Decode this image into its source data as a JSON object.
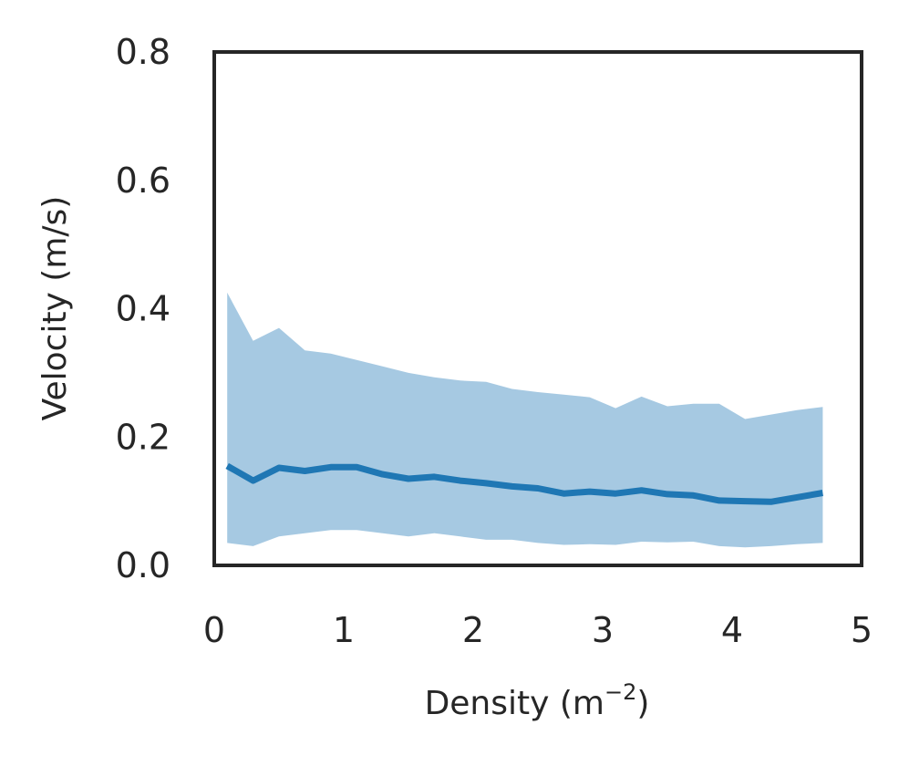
{
  "chart_data": {
    "type": "line",
    "title": "",
    "xlabel": "Density (m",
    "xlabel_exponent": "−2",
    "xlabel_close": ")",
    "ylabel": "Velocity (m/s)",
    "xlim": [
      0,
      5
    ],
    "ylim": [
      0,
      0.8
    ],
    "xticks": [
      0,
      1,
      2,
      3,
      4,
      5
    ],
    "xtick_labels": [
      "0",
      "1",
      "2",
      "3",
      "4",
      "5"
    ],
    "yticks": [
      0,
      0.2,
      0.4,
      0.6,
      0.8
    ],
    "ytick_labels": [
      "0.0",
      "0.2",
      "0.4",
      "0.6",
      "0.8"
    ],
    "grid": false,
    "x": [
      0.1,
      0.3,
      0.5,
      0.7,
      0.9,
      1.1,
      1.3,
      1.5,
      1.7,
      1.9,
      2.1,
      2.3,
      2.5,
      2.7,
      2.9,
      3.1,
      3.3,
      3.5,
      3.7,
      3.9,
      4.1,
      4.3,
      4.5,
      4.7
    ],
    "series": [
      {
        "values": [
          0.155,
          0.132,
          0.152,
          0.147,
          0.153,
          0.153,
          0.142,
          0.135,
          0.138,
          0.132,
          0.128,
          0.123,
          0.12,
          0.112,
          0.115,
          0.112,
          0.117,
          0.111,
          0.109,
          0.101,
          0.1,
          0.099,
          0.106,
          0.113
        ],
        "band_lower": [
          0.035,
          0.03,
          0.045,
          0.05,
          0.055,
          0.055,
          0.05,
          0.045,
          0.05,
          0.045,
          0.04,
          0.04,
          0.035,
          0.032,
          0.033,
          0.032,
          0.037,
          0.036,
          0.037,
          0.03,
          0.028,
          0.03,
          0.033,
          0.035
        ],
        "band_upper": [
          0.425,
          0.35,
          0.37,
          0.335,
          0.33,
          0.32,
          0.31,
          0.3,
          0.293,
          0.288,
          0.286,
          0.275,
          0.27,
          0.266,
          0.262,
          0.245,
          0.263,
          0.248,
          0.252,
          0.252,
          0.228,
          0.235,
          0.242,
          0.247
        ]
      }
    ],
    "colors": {
      "line": "#1f77b4",
      "band": "#a6c9e2",
      "axes": "#262626",
      "text": "#262626"
    }
  }
}
